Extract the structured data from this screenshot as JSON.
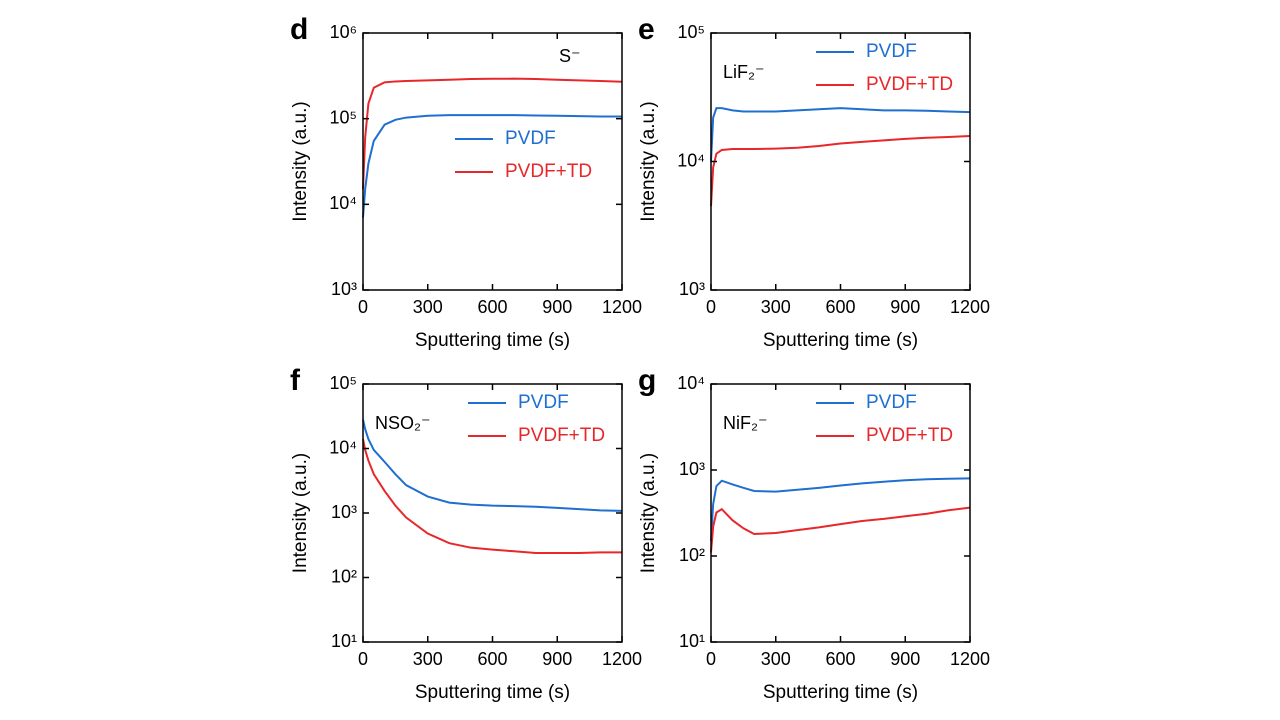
{
  "chart_data": [
    {
      "type": "line",
      "panel": "d",
      "annotation": "S⁻",
      "xlabel": "Sputtering time (s)",
      "ylabel": "Intensity (a.u.)",
      "x": [
        0,
        10,
        25,
        50,
        100,
        150,
        200,
        300,
        400,
        500,
        600,
        700,
        800,
        900,
        1000,
        1100,
        1200
      ],
      "xlim": [
        0,
        1200
      ],
      "xticks": [
        0,
        300,
        600,
        900,
        1200
      ],
      "ylim": [
        1000,
        1000000
      ],
      "log_y": true,
      "yticks": [
        {
          "value": 1000,
          "label": "10³"
        },
        {
          "value": 10000,
          "label": "10⁴"
        },
        {
          "value": 100000,
          "label": "10⁵"
        },
        {
          "value": 1000000,
          "label": "10⁶"
        }
      ],
      "legend_loc": "center",
      "series": [
        {
          "name": "PVDF",
          "color": "#1f6fd0",
          "values": [
            7000,
            15000,
            30000,
            55000,
            85000,
            97000,
            103000,
            108000,
            110000,
            110000,
            110000,
            110000,
            109000,
            108000,
            107000,
            106000,
            106000
          ]
        },
        {
          "name": "PVDF+TD",
          "color": "#e8272a",
          "values": [
            15000,
            60000,
            150000,
            230000,
            265000,
            272000,
            275000,
            280000,
            285000,
            290000,
            292000,
            293000,
            290000,
            285000,
            280000,
            275000,
            270000
          ]
        }
      ]
    },
    {
      "type": "line",
      "panel": "e",
      "annotation": "LiF₂⁻",
      "xlabel": "Sputtering time (s)",
      "ylabel": "Intensity (a.u.)",
      "x": [
        0,
        10,
        25,
        50,
        100,
        150,
        200,
        300,
        400,
        500,
        600,
        700,
        800,
        900,
        1000,
        1100,
        1200
      ],
      "xlim": [
        0,
        1200
      ],
      "xticks": [
        0,
        300,
        600,
        900,
        1200
      ],
      "ylim": [
        1000,
        100000
      ],
      "log_y": true,
      "yticks": [
        {
          "value": 1000,
          "label": "10³"
        },
        {
          "value": 10000,
          "label": "10⁴"
        },
        {
          "value": 100000,
          "label": "10⁵"
        }
      ],
      "legend_loc": "upper right",
      "series": [
        {
          "name": "PVDF",
          "color": "#1f6fd0",
          "values": [
            10000,
            22000,
            26000,
            26000,
            25000,
            24500,
            24500,
            24500,
            25000,
            25500,
            26000,
            25500,
            25000,
            25000,
            24800,
            24500,
            24200
          ]
        },
        {
          "name": "PVDF+TD",
          "color": "#e8272a",
          "values": [
            4500,
            9000,
            11500,
            12300,
            12500,
            12500,
            12500,
            12600,
            12800,
            13200,
            13800,
            14200,
            14600,
            15000,
            15300,
            15500,
            15800
          ]
        }
      ]
    },
    {
      "type": "line",
      "panel": "f",
      "annotation": "NSO₂⁻",
      "xlabel": "Sputtering time (s)",
      "ylabel": "Intensity (a.u.)",
      "x": [
        0,
        10,
        25,
        50,
        100,
        150,
        200,
        300,
        400,
        500,
        600,
        700,
        800,
        900,
        1000,
        1100,
        1200
      ],
      "xlim": [
        0,
        1200
      ],
      "xticks": [
        0,
        300,
        600,
        900,
        1200
      ],
      "ylim": [
        10,
        100000
      ],
      "log_y": true,
      "yticks": [
        {
          "value": 10,
          "label": "10¹"
        },
        {
          "value": 100,
          "label": "10²"
        },
        {
          "value": 1000,
          "label": "10³"
        },
        {
          "value": 10000,
          "label": "10⁴"
        },
        {
          "value": 100000,
          "label": "10⁵"
        }
      ],
      "legend_loc": "upper right",
      "series": [
        {
          "name": "PVDF",
          "color": "#1f6fd0",
          "values": [
            28000,
            20000,
            14000,
            9500,
            6200,
            4000,
            2700,
            1800,
            1450,
            1350,
            1300,
            1280,
            1250,
            1200,
            1150,
            1100,
            1080
          ]
        },
        {
          "name": "PVDF+TD",
          "color": "#e8272a",
          "values": [
            14000,
            9500,
            6500,
            4000,
            2200,
            1300,
            850,
            480,
            340,
            290,
            270,
            255,
            240,
            240,
            240,
            245,
            245
          ]
        }
      ]
    },
    {
      "type": "line",
      "panel": "g",
      "annotation": "NiF₂⁻",
      "xlabel": "Sputtering time (s)",
      "ylabel": "Intensity (a.u.)",
      "x": [
        0,
        10,
        25,
        50,
        100,
        150,
        200,
        300,
        400,
        500,
        600,
        700,
        800,
        900,
        1000,
        1100,
        1200
      ],
      "xlim": [
        0,
        1200
      ],
      "xticks": [
        0,
        300,
        600,
        900,
        1200
      ],
      "ylim": [
        10,
        10000
      ],
      "log_y": true,
      "yticks": [
        {
          "value": 10,
          "label": "10¹"
        },
        {
          "value": 100,
          "label": "10²"
        },
        {
          "value": 1000,
          "label": "10³"
        },
        {
          "value": 10000,
          "label": "10⁴"
        }
      ],
      "legend_loc": "upper right",
      "series": [
        {
          "name": "PVDF",
          "color": "#1f6fd0",
          "values": [
            150,
            400,
            650,
            750,
            680,
            620,
            570,
            560,
            590,
            620,
            660,
            700,
            730,
            760,
            780,
            790,
            800
          ]
        },
        {
          "name": "PVDF+TD",
          "color": "#e8272a",
          "values": [
            110,
            220,
            320,
            350,
            260,
            210,
            180,
            185,
            200,
            215,
            235,
            255,
            270,
            290,
            310,
            340,
            365
          ]
        }
      ]
    }
  ]
}
